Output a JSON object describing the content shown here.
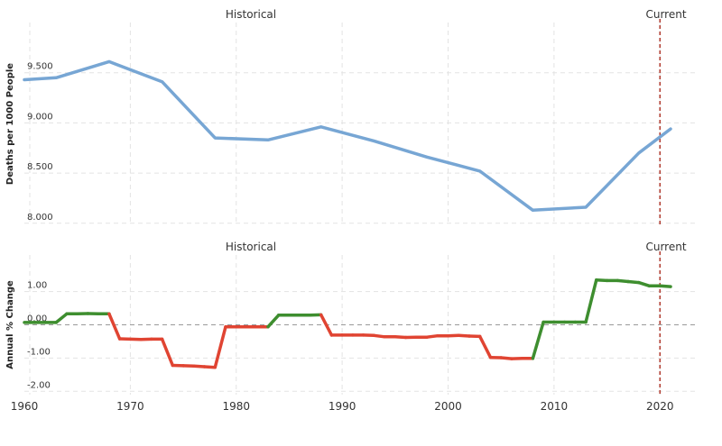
{
  "chart_data": [
    {
      "type": "line",
      "ylabel": "Deaths per 1000 People",
      "ylim": [
        7.98,
        10.0
      ],
      "yticks": [
        "8.000",
        "8.500",
        "9.000",
        "9.500"
      ],
      "ytick_values": [
        8.0,
        8.5,
        9.0,
        9.5
      ],
      "period_labels": {
        "historical": "Historical",
        "current": "Current"
      },
      "grid": true,
      "color": "#77a6d4",
      "series": [
        {
          "x": [
            1960,
            1963,
            1968,
            1973,
            1978,
            1983,
            1988,
            1993,
            1998,
            2003,
            2008,
            2013,
            2018,
            2021
          ],
          "values": [
            9.43,
            9.45,
            9.61,
            9.41,
            8.85,
            8.83,
            8.96,
            8.82,
            8.66,
            8.52,
            8.13,
            8.16,
            8.7,
            8.94
          ]
        }
      ]
    },
    {
      "type": "line",
      "ylabel": "Annual % Change",
      "ylim": [
        -2.1,
        2.1
      ],
      "yticks": [
        "1.00",
        "0.00",
        "-1.00",
        "-2.00"
      ],
      "ytick_values": [
        1.0,
        0.0,
        -1.0,
        -2.0
      ],
      "period_labels": {
        "historical": "Historical",
        "current": "Current"
      },
      "grid": true,
      "positive_color": "#3e8e2f",
      "negative_color": "#e04432",
      "series": [
        {
          "x": [
            1960,
            1961,
            1962,
            1963,
            1964,
            1965,
            1966,
            1967,
            1968,
            1969,
            1970,
            1971,
            1972,
            1973,
            1974,
            1975,
            1976,
            1977,
            1978,
            1979,
            1980,
            1981,
            1982,
            1983,
            1984,
            1985,
            1986,
            1987,
            1988,
            1989,
            1990,
            1991,
            1992,
            1993,
            1994,
            1995,
            1996,
            1997,
            1998,
            1999,
            2000,
            2001,
            2002,
            2003,
            2004,
            2005,
            2006,
            2007,
            2008,
            2009,
            2010,
            2011,
            2012,
            2013,
            2014,
            2015,
            2016,
            2017,
            2018,
            2019,
            2020,
            2021
          ],
          "values": [
            0.07,
            0.07,
            0.07,
            0.07,
            0.33,
            0.33,
            0.34,
            0.33,
            0.33,
            -0.42,
            -0.43,
            -0.44,
            -0.43,
            -0.43,
            -1.22,
            -1.23,
            -1.24,
            -1.26,
            -1.28,
            -0.06,
            -0.06,
            -0.06,
            -0.06,
            -0.06,
            0.29,
            0.29,
            0.29,
            0.29,
            0.3,
            -0.31,
            -0.31,
            -0.31,
            -0.31,
            -0.32,
            -0.36,
            -0.36,
            -0.38,
            -0.37,
            -0.37,
            -0.33,
            -0.33,
            -0.32,
            -0.34,
            -0.35,
            -0.98,
            -0.99,
            -1.02,
            -1.01,
            -1.01,
            0.08,
            0.08,
            0.08,
            0.08,
            0.08,
            1.35,
            1.33,
            1.33,
            1.3,
            1.27,
            1.17,
            1.17,
            1.15
          ]
        }
      ]
    }
  ],
  "x_axis": {
    "ticks": [
      1960,
      1970,
      1980,
      1990,
      2000,
      2010,
      2020
    ],
    "xlim": [
      1960,
      2021
    ],
    "current_marker": 2020,
    "current_marker_color": "#b03a2e"
  }
}
